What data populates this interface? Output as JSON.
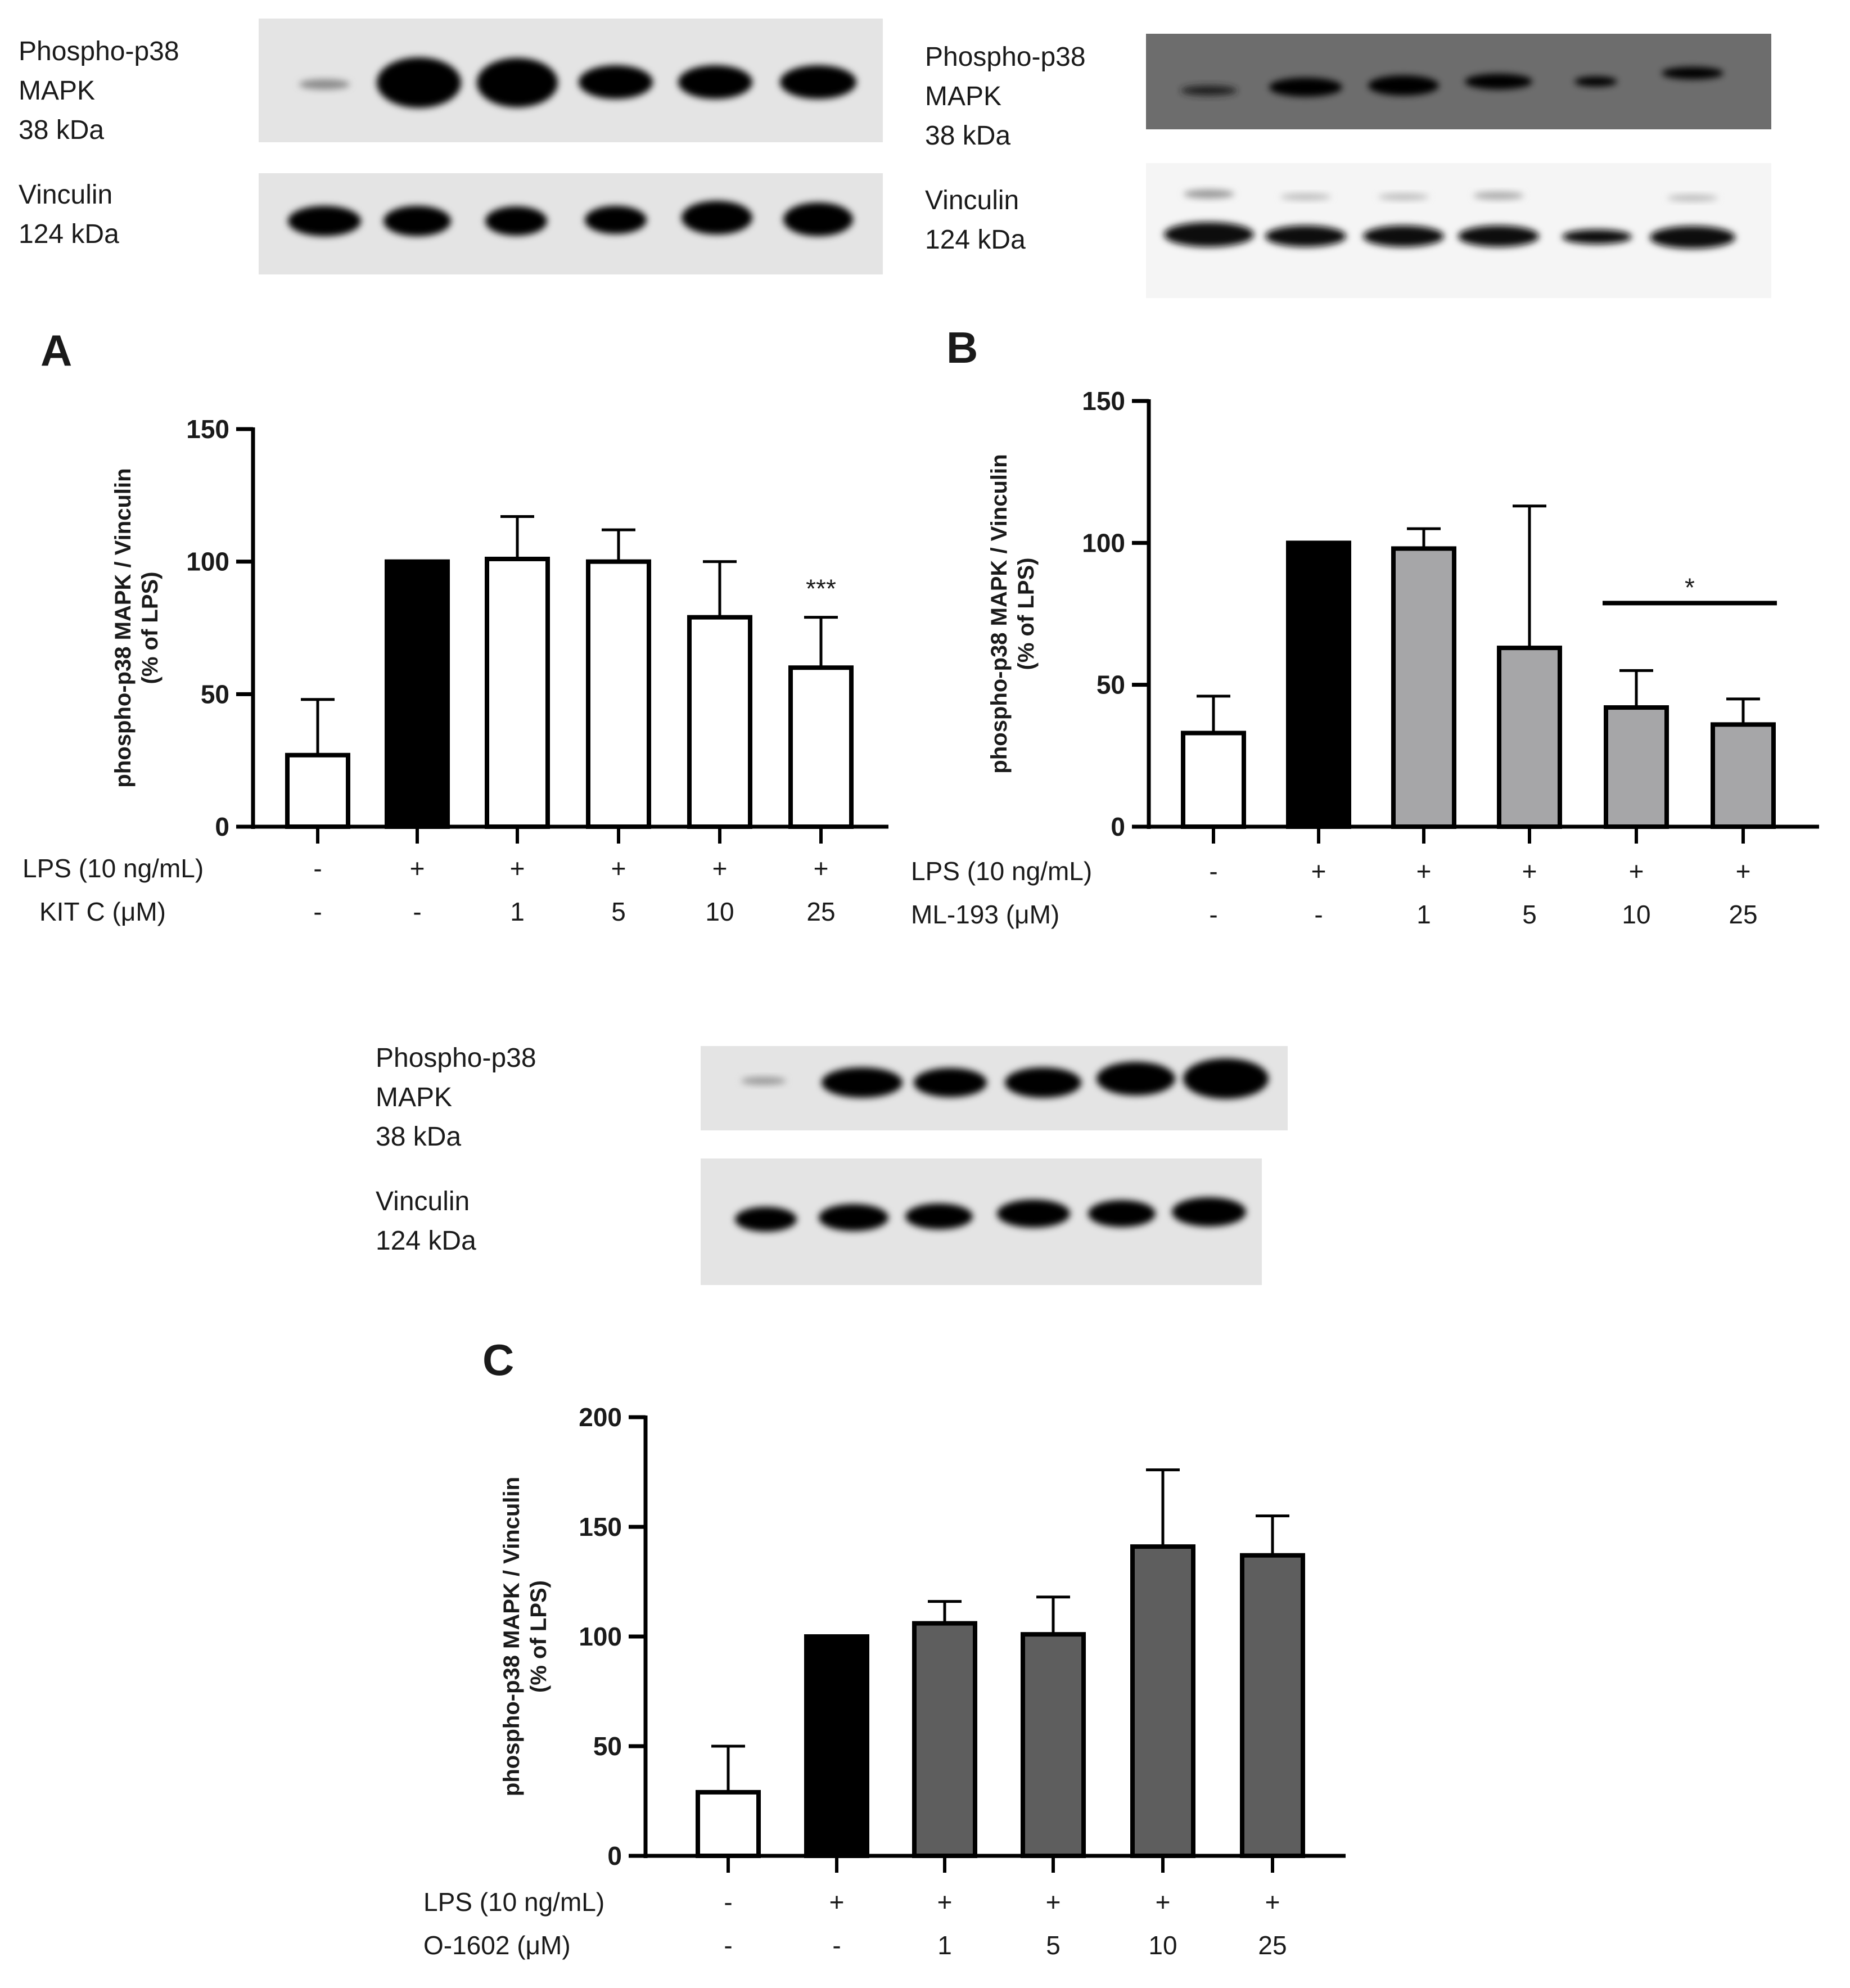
{
  "panels": [
    {
      "letter": "A",
      "blot": {
        "phospho_label": [
          "Phospho-p38",
          "MAPK",
          "38 kDa"
        ],
        "loading_label": [
          "Vinculin",
          "124 kDa"
        ]
      },
      "treatment": {
        "row1_label": "LPS (10 ng/mL)",
        "row1": [
          "-",
          "+",
          "+",
          "+",
          "+",
          "+"
        ],
        "row2_label": "KIT C (μM)",
        "row2": [
          "-",
          "-",
          "1",
          "5",
          "10",
          "25"
        ]
      }
    },
    {
      "letter": "B",
      "blot": {
        "phospho_label": [
          "Phospho-p38",
          "MAPK",
          "38 kDa"
        ],
        "loading_label": [
          "Vinculin",
          "124 kDa"
        ]
      },
      "treatment": {
        "row1_label": "LPS (10 ng/mL)",
        "row1": [
          "-",
          "+",
          "+",
          "+",
          "+",
          "+"
        ],
        "row2_label": "ML-193 (μM)",
        "row2": [
          "-",
          "-",
          "1",
          "5",
          "10",
          "25"
        ]
      }
    },
    {
      "letter": "C",
      "blot": {
        "phospho_label": [
          "Phospho-p38",
          "MAPK",
          "38 kDa"
        ],
        "loading_label": [
          "Vinculin",
          "124 kDa"
        ]
      },
      "treatment": {
        "row1_label": "LPS (10 ng/mL)",
        "row1": [
          "-",
          "+",
          "+",
          "+",
          "+",
          "+"
        ],
        "row2_label": "O-1602 (μM)",
        "row2": [
          "-",
          "-",
          "1",
          "5",
          "10",
          "25"
        ]
      }
    }
  ],
  "colors": {
    "control": "#ffffff",
    "lps": "#000000",
    "kitc": "#ffffff",
    "ml193": "#a6a6a8",
    "o1602": "#5e5e5e",
    "axis": "#000000"
  },
  "chart_data": [
    {
      "type": "bar",
      "panel": "A",
      "ylabel": "phospho-p38 MAPK / Vinculin (% of LPS)",
      "ylabel_lines": [
        "phospho-p38 MAPK / Vinculin",
        "(% of LPS)"
      ],
      "ylim": [
        0,
        150
      ],
      "yticks": [
        0,
        50,
        100,
        150
      ],
      "values": [
        27,
        100,
        101,
        100,
        79,
        60
      ],
      "errors": [
        21,
        0,
        16,
        12,
        21,
        19
      ],
      "fills": [
        "control",
        "lps",
        "kitc",
        "kitc",
        "kitc",
        "kitc"
      ],
      "annotations": [
        {
          "bar": 5,
          "text": "***"
        }
      ]
    },
    {
      "type": "bar",
      "panel": "B",
      "ylabel": "phospho-p38 MAPK / Vinculin (% of LPS)",
      "ylabel_lines": [
        "phospho-p38 MAPK / Vinculin",
        "(% of LPS)"
      ],
      "ylim": [
        0,
        150
      ],
      "yticks": [
        0,
        50,
        100,
        150
      ],
      "values": [
        33,
        100,
        98,
        63,
        42,
        36
      ],
      "errors": [
        13,
        0,
        7,
        50,
        13,
        9
      ],
      "fills": [
        "control",
        "lps",
        "ml193",
        "ml193",
        "ml193",
        "ml193"
      ],
      "annotations": [
        {
          "from_bar": 4,
          "to_bar": 5,
          "text": "*"
        }
      ]
    },
    {
      "type": "bar",
      "panel": "C",
      "ylabel": "phospho-p38 MAPK / Vinculin (% of LPS)",
      "ylabel_lines": [
        "phospho-p38 MAPK / Vinculin",
        "(% of LPS)"
      ],
      "ylim": [
        0,
        200
      ],
      "yticks": [
        0,
        50,
        100,
        150,
        200
      ],
      "values": [
        29,
        100,
        106,
        101,
        141,
        137
      ],
      "errors": [
        21,
        0,
        10,
        17,
        35,
        18
      ],
      "fills": [
        "control",
        "lps",
        "o1602",
        "o1602",
        "o1602",
        "o1602"
      ],
      "annotations": []
    }
  ]
}
